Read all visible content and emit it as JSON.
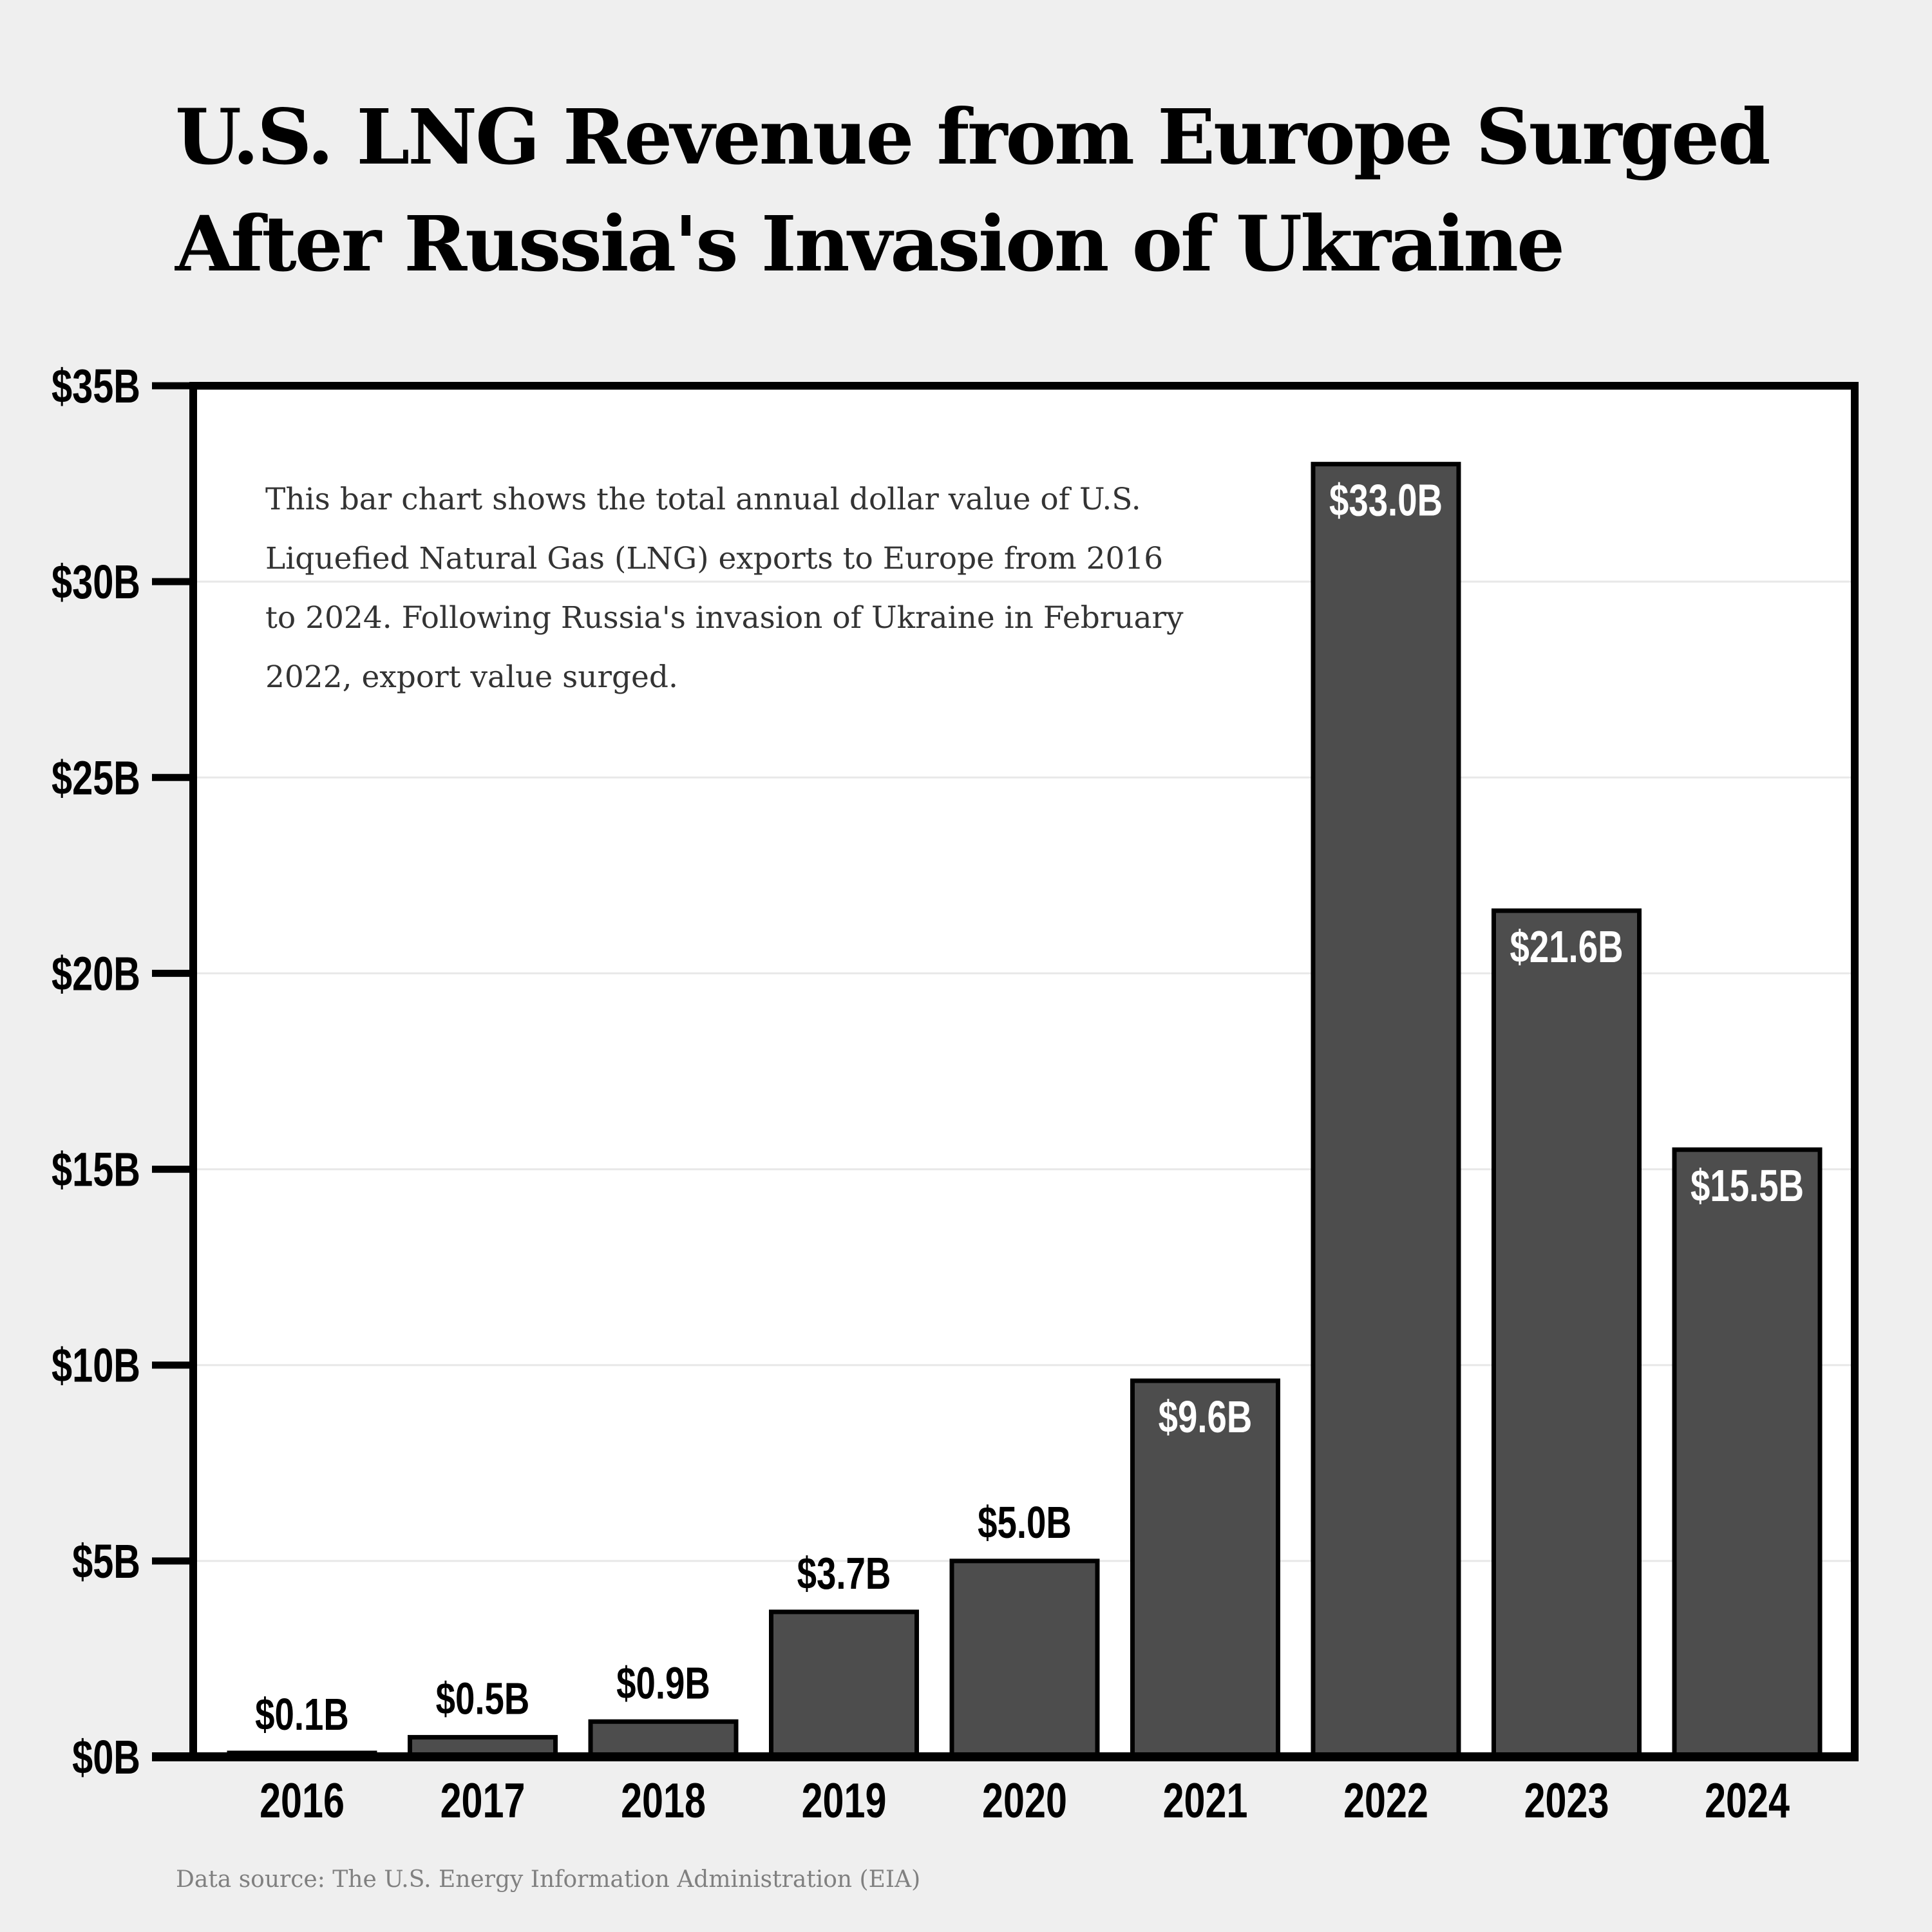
{
  "title_lines": [
    "U.S. LNG Revenue from Europe Surged",
    "After Russia's Invasion of Ukraine"
  ],
  "description": "This bar chart shows the total annual dollar value of U.S. Liquefied Natural Gas (LNG) exports to Europe from 2016 to 2024. Following Russia's invasion of Ukraine in February 2022, export value surged.",
  "source": "Data source: The U.S. Energy Information Administration (EIA)",
  "colors": {
    "bar": "#4d4d4d",
    "bar_outline": "#000000",
    "background": "#efefef",
    "plot_background": "#ffffff",
    "grid": "#e8e8e8"
  },
  "chart_data": {
    "type": "bar",
    "categories": [
      "2016",
      "2017",
      "2018",
      "2019",
      "2020",
      "2021",
      "2022",
      "2023",
      "2024"
    ],
    "values": [
      0.1,
      0.5,
      0.9,
      3.7,
      5.0,
      9.6,
      33.0,
      21.6,
      15.5
    ],
    "data_labels": [
      "$0.1B",
      "$0.5B",
      "$0.9B",
      "$3.7B",
      "$5.0B",
      "$9.6B",
      "$33.0B",
      "$21.6B",
      "$15.5B"
    ],
    "ylim": [
      0,
      35
    ],
    "yticks": [
      0,
      5,
      10,
      15,
      20,
      25,
      30,
      35
    ],
    "ytick_labels": [
      "$0B",
      "$5B",
      "$10B",
      "$15B",
      "$20B",
      "$25B",
      "$30B",
      "$35B"
    ],
    "grid": true,
    "xlabel": "",
    "ylabel": ""
  }
}
